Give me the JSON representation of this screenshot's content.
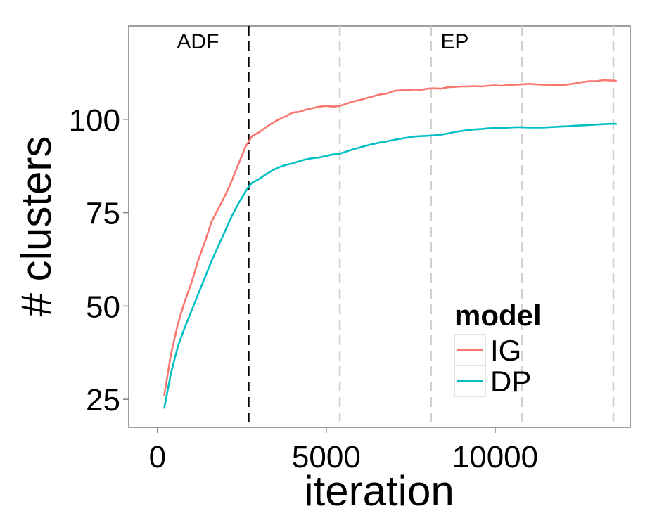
{
  "chart_data": {
    "type": "line",
    "xlabel": "iteration",
    "ylabel": "# clusters",
    "xlim": [
      -850,
      14000
    ],
    "ylim": [
      17.5,
      125
    ],
    "xticks": [
      0,
      5000,
      10000
    ],
    "yticks": [
      25,
      50,
      75,
      100
    ],
    "grid": false,
    "legend": {
      "title": "model",
      "position": "bottom-right"
    },
    "annotations": [
      {
        "text": "ADF",
        "x": 1200,
        "y": 119
      },
      {
        "text": "EP",
        "x": 8800,
        "y": 119
      }
    ],
    "vlines": [
      {
        "x": 2700,
        "style": "black-dashed"
      },
      {
        "x": 5400,
        "style": "grey-dashed"
      },
      {
        "x": 8100,
        "style": "grey-dashed"
      },
      {
        "x": 10800,
        "style": "grey-dashed"
      },
      {
        "x": 13500,
        "style": "grey-dashed"
      }
    ],
    "series": [
      {
        "name": "IG",
        "color": "#F8766D",
        "x": [
          200,
          400,
          600,
          800,
          1000,
          1200,
          1400,
          1600,
          1800,
          2000,
          2200,
          2400,
          2600,
          2700,
          2800,
          3000,
          3200,
          3400,
          3600,
          3800,
          4000,
          4200,
          4400,
          4600,
          4800,
          5000,
          5200,
          5400,
          5600,
          5800,
          6000,
          6200,
          6400,
          6600,
          6800,
          7000,
          7200,
          7400,
          7600,
          7800,
          8000,
          8200,
          8400,
          8600,
          8800,
          9000,
          9200,
          9400,
          9600,
          9800,
          10000,
          10200,
          10400,
          10600,
          10800,
          11000,
          11200,
          11400,
          11600,
          11800,
          12000,
          12200,
          12400,
          12600,
          12800,
          13000,
          13200,
          13400,
          13600
        ],
        "values": [
          26,
          37,
          45,
          51,
          56,
          62,
          67,
          72.5,
          76,
          79.5,
          83.5,
          88,
          92.5,
          94,
          95.5,
          96.5,
          97.8,
          99,
          100,
          100.8,
          101.8,
          102,
          102.6,
          103,
          103.4,
          103.6,
          103.4,
          103.6,
          104.2,
          104.8,
          105.2,
          105.7,
          106.2,
          106.7,
          106.9,
          107.6,
          107.8,
          107.8,
          108,
          107.9,
          108.2,
          108.3,
          108.2,
          108.6,
          108.7,
          108.8,
          108.8,
          108.9,
          108.8,
          109,
          109.1,
          109,
          109.2,
          109.3,
          109.4,
          109.5,
          109.4,
          109.3,
          109.1,
          109.2,
          109.2,
          109.4,
          109.7,
          110,
          110.2,
          110.2,
          110.5,
          110.4,
          110.3
        ]
      },
      {
        "name": "DP",
        "color": "#00BFC4",
        "x": [
          200,
          400,
          600,
          800,
          1000,
          1200,
          1400,
          1600,
          1800,
          2000,
          2200,
          2400,
          2600,
          2700,
          2800,
          3000,
          3200,
          3400,
          3600,
          3800,
          4000,
          4200,
          4400,
          4600,
          4800,
          5000,
          5200,
          5400,
          5600,
          5800,
          6000,
          6200,
          6400,
          6600,
          6800,
          7000,
          7200,
          7400,
          7600,
          7800,
          8000,
          8200,
          8400,
          8600,
          8800,
          9000,
          9200,
          9400,
          9600,
          9800,
          10000,
          10200,
          10400,
          10600,
          10800,
          11000,
          11200,
          11400,
          11600,
          11800,
          12000,
          12200,
          12400,
          12600,
          12800,
          13000,
          13200,
          13400,
          13600
        ],
        "values": [
          22.5,
          32,
          39,
          44,
          48.5,
          53,
          57.5,
          62,
          66,
          70,
          74,
          77.5,
          80.5,
          82,
          83,
          84,
          85.2,
          86.3,
          87.2,
          87.8,
          88.2,
          88.8,
          89.3,
          89.6,
          89.8,
          90.2,
          90.6,
          90.8,
          91.4,
          92,
          92.5,
          93,
          93.4,
          93.8,
          94.1,
          94.5,
          94.8,
          95.1,
          95.4,
          95.5,
          95.6,
          95.7,
          95.9,
          96.2,
          96.6,
          96.9,
          97.1,
          97.3,
          97.4,
          97.6,
          97.7,
          97.7,
          97.8,
          97.9,
          97.9,
          97.8,
          97.8,
          97.8,
          97.9,
          98,
          98.1,
          98.2,
          98.3,
          98.4,
          98.5,
          98.6,
          98.7,
          98.8,
          98.8
        ]
      }
    ]
  }
}
